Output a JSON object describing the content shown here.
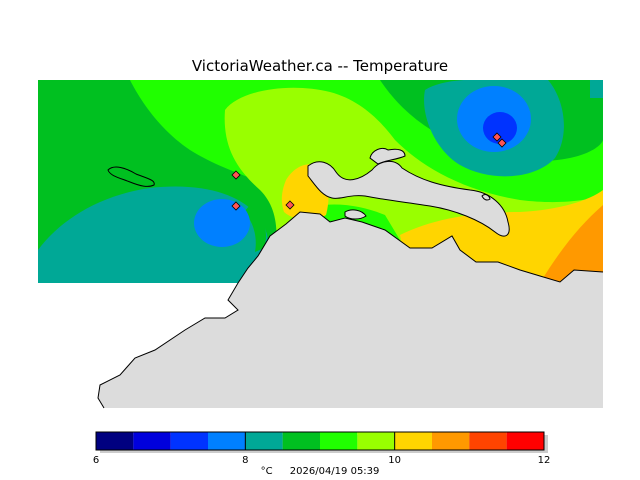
{
  "title": "VictoriaWeather.ca -- Temperature",
  "legend": {
    "unit": "°C",
    "timestamp": "2026/04/19 05:39",
    "min": 6,
    "max": 12,
    "tick_labels": [
      "6",
      "8",
      "10",
      "12"
    ],
    "tick_values": [
      6,
      8,
      10,
      12
    ],
    "bins": [
      {
        "from": 6.0,
        "to": 6.5,
        "color": "#000080"
      },
      {
        "from": 6.5,
        "to": 7.0,
        "color": "#0000dd"
      },
      {
        "from": 7.0,
        "to": 7.5,
        "color": "#0033ff"
      },
      {
        "from": 7.5,
        "to": 8.0,
        "color": "#0080ff"
      },
      {
        "from": 8.0,
        "to": 8.5,
        "color": "#00a896"
      },
      {
        "from": 8.5,
        "to": 9.0,
        "color": "#00c020"
      },
      {
        "from": 9.0,
        "to": 9.5,
        "color": "#20ff00"
      },
      {
        "from": 9.5,
        "to": 10.0,
        "color": "#99ff00"
      },
      {
        "from": 10.0,
        "to": 10.5,
        "color": "#ffd500"
      },
      {
        "from": 10.5,
        "to": 11.0,
        "color": "#ff9900"
      },
      {
        "from": 11.0,
        "to": 11.5,
        "color": "#ff4400"
      },
      {
        "from": 11.5,
        "to": 12.0,
        "color": "#ff0000"
      }
    ]
  },
  "map": {
    "land_color": "#dcdcdc",
    "coastline_color": "#000000",
    "station_marker_color": "#ff5555"
  }
}
